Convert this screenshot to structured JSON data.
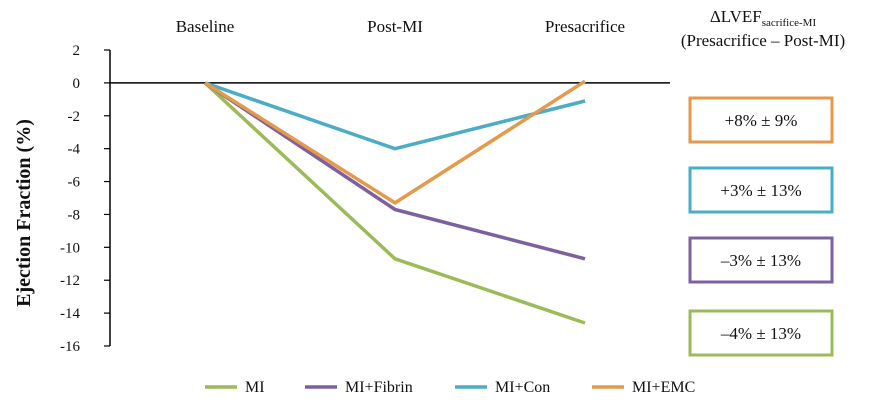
{
  "chart_data": {
    "type": "line",
    "categories": [
      "Baseline",
      "Post-MI",
      "Presacrifice"
    ],
    "ylabel": "Ejection Fraction (%)",
    "ylim": [
      -16,
      2
    ],
    "yticks": [
      2,
      0,
      -2,
      -4,
      -6,
      -8,
      -10,
      -12,
      -14,
      -16
    ],
    "grid": false,
    "legend_position": "bottom",
    "series": [
      {
        "name": "MI",
        "color": "#9bbb59",
        "values": [
          0,
          -10.7,
          -14.6
        ]
      },
      {
        "name": "MI+Fibrin",
        "color": "#7d60a0",
        "values": [
          0,
          -7.7,
          -10.7
        ]
      },
      {
        "name": "MI+Con",
        "color": "#4bacc6",
        "values": [
          0,
          -4.0,
          -1.1
        ]
      },
      {
        "name": "MI+EMC",
        "color": "#e49a4a",
        "values": [
          0,
          -7.3,
          0.1
        ]
      }
    ],
    "annotation_header": {
      "line1_main": "ΔLVEF",
      "line1_sub": "sacrifice-MI",
      "line2": "(Presacrifice – Post-MI)"
    },
    "annotations": [
      {
        "text": "+8% ± 9%",
        "color": "#e49a4a"
      },
      {
        "text": "+3% ± 13%",
        "color": "#4bacc6"
      },
      {
        "text": "–3% ± 13%",
        "color": "#7d60a0"
      },
      {
        "text": "–4% ± 13%",
        "color": "#9bbb59"
      }
    ]
  }
}
